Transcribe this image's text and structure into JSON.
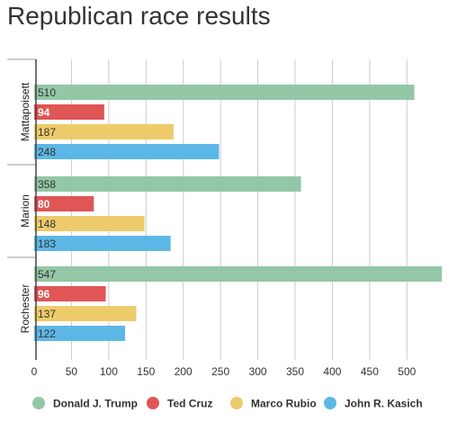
{
  "title": "Republican race results",
  "chart_data": {
    "type": "bar",
    "orientation": "horizontal",
    "title": "Republican race results",
    "categories": [
      "Mattapoisett",
      "Marion",
      "Rochester"
    ],
    "series": [
      {
        "name": "Donald J. Trump",
        "color": "#93c7a6",
        "label_color": "#333333",
        "values": [
          510,
          358,
          547
        ]
      },
      {
        "name": "Ted Cruz",
        "color": "#e05555",
        "label_color": "#ffffff",
        "values": [
          94,
          80,
          96
        ]
      },
      {
        "name": "Marco Rubio",
        "color": "#eecb6a",
        "label_color": "#333333",
        "values": [
          187,
          148,
          137
        ]
      },
      {
        "name": "John R. Kasich",
        "color": "#5db7e6",
        "label_color": "#333333",
        "values": [
          248,
          183,
          122
        ]
      }
    ],
    "x_ticks": [
      0,
      50,
      100,
      150,
      200,
      250,
      300,
      350,
      400,
      450,
      500
    ],
    "xlim": [
      0,
      550
    ],
    "grid": true,
    "legend_position": "bottom"
  }
}
